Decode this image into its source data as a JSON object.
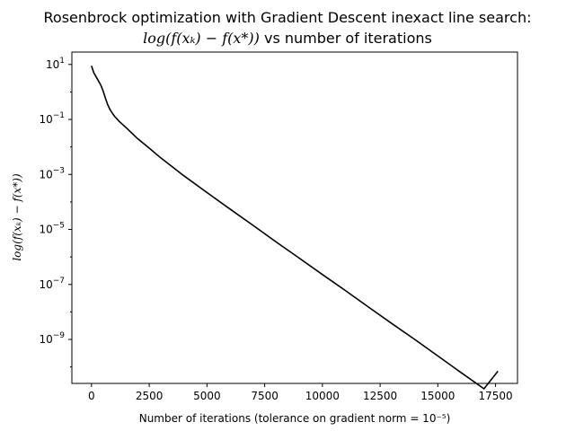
{
  "chart_data": {
    "type": "line",
    "title_line1": "Rosenbrock optimization with Gradient Descent inexact line search:",
    "title_line2_math": "log(f(xₖ) − f(x*))",
    "title_line2_text": " vs number of iterations",
    "xlabel": "Number of iterations (tolerance on gradient norm = 10⁻⁵)",
    "ylabel": "log(f(xₖ) − f(x*))",
    "yscale": "log",
    "xlim": [
      -850,
      18450
    ],
    "ylim_exp": [
      -10.6,
      1.45
    ],
    "x_ticks": [
      0,
      2500,
      5000,
      7500,
      10000,
      12500,
      15000,
      17500
    ],
    "x_tick_labels": [
      "0",
      "2500",
      "5000",
      "7500",
      "10000",
      "12500",
      "15000",
      "17500"
    ],
    "y_tick_exponents": [
      1,
      -1,
      -3,
      -5,
      -7,
      -9
    ],
    "grid": false,
    "line_color": "#000000",
    "series": [
      {
        "x": [
          0,
          100,
          250,
          400,
          500,
          600,
          700,
          800,
          900,
          1000,
          1200,
          1500,
          2000,
          2500,
          3000,
          4000,
          5000,
          6000,
          7000,
          8000,
          9000,
          10000,
          11000,
          12000,
          13000,
          14000,
          15000,
          16000,
          17000,
          17600
        ],
        "y": [
          9,
          5,
          3,
          1.8,
          1.1,
          0.6,
          0.35,
          0.23,
          0.17,
          0.13,
          0.085,
          0.05,
          0.02,
          0.009,
          0.004,
          0.0009,
          0.00022,
          5.5e-05,
          1.4e-05,
          3.5e-06,
          9e-07,
          2.3e-07,
          6e-08,
          1.5e-08,
          3.8e-09,
          1e-09,
          2.5e-10,
          6.3e-11,
          1.6e-11,
          7e-11
        ]
      }
    ]
  }
}
